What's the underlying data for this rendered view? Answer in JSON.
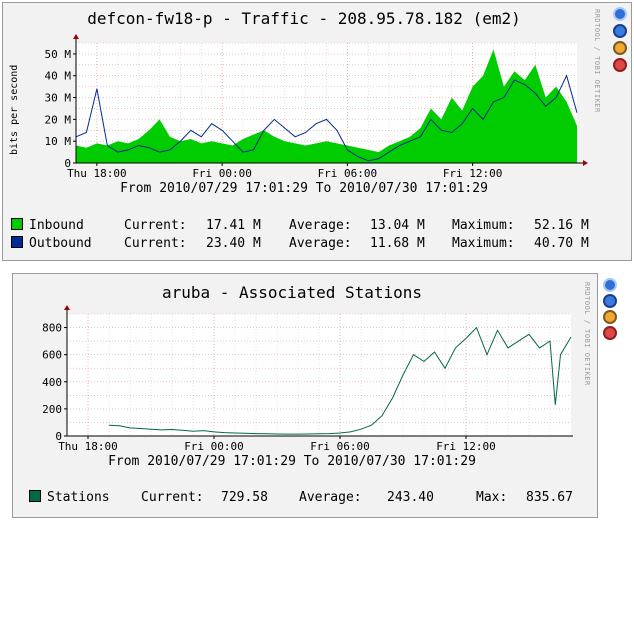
{
  "panels": [
    {
      "title": "defcon-fw18-p - Traffic - 208.95.78.182 (em2)",
      "range_text": "From 2010/07/29 17:01:29 To 2010/07/30 17:01:29",
      "watermark": "RRDTOOL / TOBI OETIKER",
      "icons": [
        "zoom-icon",
        "compare-icon",
        "edit-icon",
        "remove-icon"
      ],
      "legend": [
        {
          "name": "Inbound",
          "color": "#00cc00",
          "stats": [
            [
              "Current:",
              "17.41 M"
            ],
            [
              "Average:",
              "13.04 M"
            ],
            [
              "Maximum:",
              "52.16 M"
            ]
          ]
        },
        {
          "name": "Outbound",
          "color": "#002a97",
          "stats": [
            [
              "Current:",
              "23.40 M"
            ],
            [
              "Average:",
              "11.68 M"
            ],
            [
              "Maximum:",
              "40.70 M"
            ]
          ]
        }
      ]
    },
    {
      "title": "aruba - Associated Stations",
      "range_text": "From 2010/07/29 17:01:29 To 2010/07/30 17:01:29",
      "watermark": "RRDTOOL / TOBI OETIKER",
      "icons": [
        "zoom-icon",
        "compare-icon",
        "edit-icon",
        "remove-icon"
      ],
      "legend": [
        {
          "name": "Stations",
          "color": "#00694a",
          "stats": [
            [
              "Current:",
              "729.58"
            ],
            [
              "Average:",
              "243.40"
            ],
            [
              "Max:",
              "835.67"
            ]
          ]
        }
      ]
    }
  ],
  "chart_data": [
    {
      "type": "area",
      "title": "defcon-fw18-p - Traffic - 208.95.78.182 (em2)",
      "ylabel": "bits per second",
      "x_unit": "hours since 2010/07/29 17:01:29",
      "xlim": [
        0,
        24
      ],
      "ylim": [
        0,
        55
      ],
      "y_ticks": [
        0,
        10,
        20,
        30,
        40,
        50
      ],
      "y_tick_labels": [
        "0",
        "10 M",
        "20 M",
        "30 M",
        "40 M",
        "50 M"
      ],
      "x_ticks": [
        1,
        7,
        13,
        19
      ],
      "x_tick_labels": [
        "Thu 18:00",
        "Fri 00:00",
        "Fri 06:00",
        "Fri 12:00"
      ],
      "grid": true,
      "series": [
        {
          "name": "Inbound",
          "style": "area",
          "color": "#00cc00",
          "x": [
            0,
            0.5,
            1,
            1.5,
            2,
            2.5,
            3,
            3.5,
            4,
            4.5,
            5,
            5.5,
            6,
            6.5,
            7,
            7.5,
            8,
            8.5,
            9,
            9.5,
            10,
            10.5,
            11,
            11.5,
            12,
            12.5,
            13,
            13.5,
            14,
            14.5,
            15,
            15.5,
            16,
            16.5,
            17,
            17.5,
            18,
            18.5,
            19,
            19.5,
            20,
            20.5,
            21,
            21.5,
            22,
            22.5,
            23,
            23.5,
            24
          ],
          "values": [
            8,
            7,
            9,
            8,
            10,
            9,
            11,
            15,
            20,
            12,
            10,
            11,
            9,
            10,
            9,
            8,
            11,
            13,
            15,
            12,
            10,
            9,
            8,
            9,
            10,
            9,
            8,
            7,
            6,
            5,
            8,
            10,
            12,
            16,
            25,
            20,
            30,
            24,
            35,
            40,
            52,
            35,
            42,
            38,
            45,
            30,
            35,
            28,
            17
          ]
        },
        {
          "name": "Outbound",
          "style": "line",
          "color": "#002a97",
          "x": [
            0,
            0.5,
            1,
            1.5,
            2,
            2.5,
            3,
            3.5,
            4,
            4.5,
            5,
            5.5,
            6,
            6.5,
            7,
            7.5,
            8,
            8.5,
            9,
            9.5,
            10,
            10.5,
            11,
            11.5,
            12,
            12.5,
            13,
            13.5,
            14,
            14.5,
            15,
            15.5,
            16,
            16.5,
            17,
            17.5,
            18,
            18.5,
            19,
            19.5,
            20,
            20.5,
            21,
            21.5,
            22,
            22.5,
            23,
            23.5,
            24
          ],
          "values": [
            12,
            14,
            34,
            8,
            5,
            6,
            8,
            7,
            5,
            6,
            10,
            15,
            12,
            18,
            15,
            10,
            5,
            6,
            15,
            20,
            16,
            12,
            14,
            18,
            20,
            15,
            6,
            3,
            1,
            2,
            5,
            8,
            10,
            12,
            20,
            15,
            14,
            18,
            25,
            20,
            28,
            30,
            38,
            36,
            32,
            26,
            30,
            40,
            23
          ]
        }
      ]
    },
    {
      "type": "line",
      "title": "aruba - Associated Stations",
      "x_unit": "hours since 2010/07/29 17:01:29",
      "xlim": [
        0,
        24
      ],
      "ylim": [
        0,
        900
      ],
      "y_ticks": [
        0,
        200,
        400,
        600,
        800
      ],
      "y_tick_labels": [
        "0",
        "200",
        "400",
        "600",
        "800"
      ],
      "x_ticks": [
        1,
        7,
        13,
        19
      ],
      "x_tick_labels": [
        "Thu 18:00",
        "Fri 00:00",
        "Fri 06:00",
        "Fri 12:00"
      ],
      "grid": true,
      "series": [
        {
          "name": "Stations",
          "color": "#00694a",
          "x": [
            2,
            2.5,
            3,
            3.5,
            4,
            4.5,
            5,
            5.5,
            6,
            6.5,
            7,
            7.5,
            8,
            8.5,
            9,
            9.5,
            10,
            10.5,
            11,
            11.5,
            12,
            12.5,
            13,
            13.5,
            14,
            14.5,
            15,
            15.5,
            16,
            16.5,
            17,
            17.5,
            18,
            18.5,
            19,
            19.5,
            20,
            20.5,
            21,
            21.5,
            22,
            22.5,
            23,
            23.25,
            23.5,
            24
          ],
          "values": [
            80,
            75,
            60,
            55,
            50,
            45,
            48,
            42,
            35,
            40,
            30,
            25,
            22,
            20,
            18,
            16,
            15,
            14,
            14,
            15,
            16,
            18,
            22,
            30,
            50,
            80,
            150,
            280,
            450,
            600,
            550,
            620,
            500,
            650,
            720,
            800,
            600,
            780,
            650,
            700,
            750,
            650,
            700,
            230,
            600,
            730
          ]
        }
      ]
    }
  ]
}
